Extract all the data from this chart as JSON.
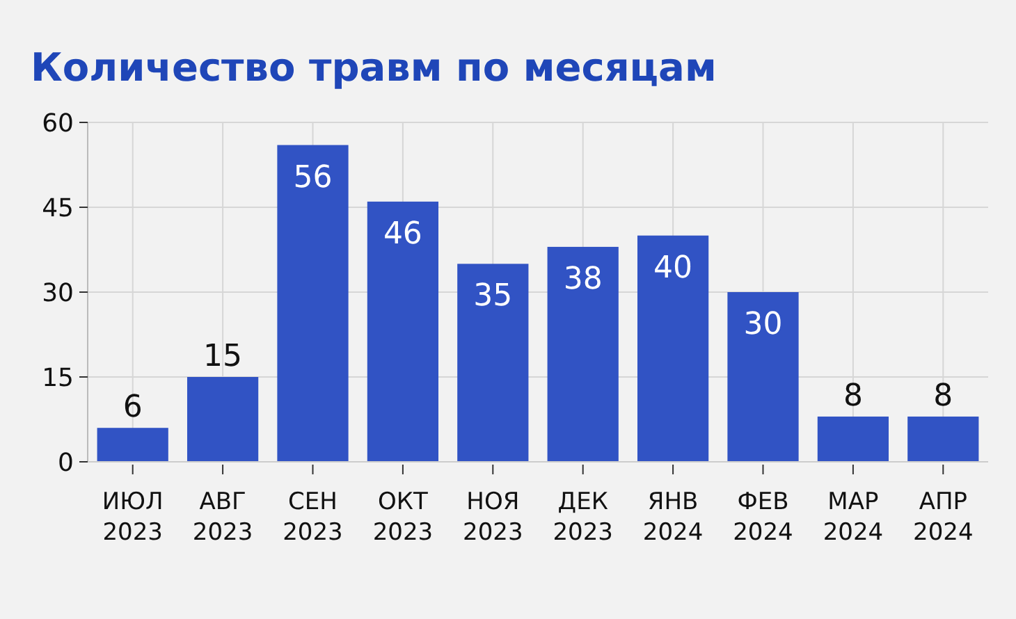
{
  "chart_data": {
    "type": "bar",
    "title": "Количество травм по месяцам",
    "categories": [
      "ИЮЛ\n2023",
      "АВГ\n2023",
      "СЕН\n2023",
      "ОКТ\n2023",
      "НОЯ\n2023",
      "ДЕК\n2023",
      "ЯНВ\n2024",
      "ФЕВ\n2024",
      "МАР\n2024",
      "АПР\n2024"
    ],
    "values": [
      6,
      15,
      56,
      46,
      35,
      38,
      40,
      30,
      8,
      8
    ],
    "color": "#3153c4",
    "ylim": [
      0,
      60
    ],
    "yticks": [
      0,
      15,
      30,
      45,
      60
    ],
    "grid": true,
    "data_labels": true
  }
}
